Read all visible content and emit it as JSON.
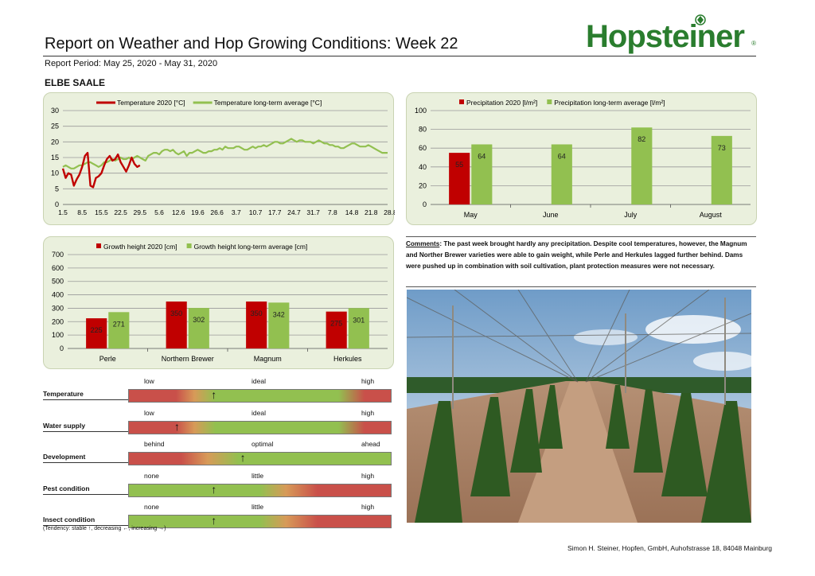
{
  "header": {
    "title": "Report on Weather and Hop Growing Conditions: Week 22",
    "period": "Report Period: May 25, 2020  - May 31, 2020",
    "region": "ELBE SAALE",
    "logo": "Hopsteiner",
    "logo_mark": "®"
  },
  "colors": {
    "red": "#c00000",
    "green": "#92c050",
    "panel_bg": "#eaf0dd"
  },
  "chart_data": [
    {
      "type": "line",
      "legend_placement": "top",
      "grid": true,
      "ylim": [
        0,
        30
      ],
      "yticks": [
        "0",
        "5",
        "10",
        "15",
        "20",
        "25",
        "30"
      ],
      "xticks": [
        "1.5",
        "8.5",
        "15.5",
        "22.5",
        "29.5",
        "5.6",
        "12.6",
        "19.6",
        "26.6",
        "3.7",
        "10.7",
        "17.7",
        "24.7",
        "31.7",
        "7.8",
        "14.8",
        "21.8",
        "28.8"
      ],
      "series": [
        {
          "name": "Temperature 2020 [°C]",
          "color": "#c00000",
          "values": [
            11.5,
            8.5,
            10.0,
            9.5,
            6.0,
            8.0,
            9.5,
            12.0,
            15.5,
            16.5,
            6.0,
            5.5,
            8.5,
            9.0,
            10.0,
            12.5,
            14.5,
            15.5,
            14.0,
            14.5,
            16.0,
            13.5,
            12.0,
            10.5,
            12.5,
            15.0,
            13.0,
            12.0,
            12.5
          ]
        },
        {
          "name": "Temperature long-term average [°C]",
          "color": "#92c050",
          "values": [
            12.0,
            12.5,
            12.0,
            11.5,
            11.5,
            12.0,
            12.5,
            12.5,
            13.0,
            13.5,
            13.5,
            13.0,
            12.5,
            12.0,
            12.5,
            13.5,
            13.5,
            14.0,
            14.5,
            14.0,
            14.5,
            15.0,
            14.5,
            14.5,
            15.0,
            14.5,
            15.0,
            15.5,
            15.0,
            14.5,
            14.0,
            15.5,
            16.0,
            16.5,
            16.5,
            16.0,
            17.0,
            17.5,
            17.5,
            17.0,
            17.5,
            16.5,
            16.0,
            16.5,
            17.0,
            15.5,
            16.5,
            16.5,
            17.0,
            17.5,
            17.0,
            16.5,
            16.5,
            17.0,
            17.0,
            17.5,
            17.5,
            18.0,
            17.5,
            18.5,
            18.0,
            18.0,
            18.0,
            18.5,
            18.5,
            18.0,
            17.5,
            17.5,
            18.0,
            18.5,
            18.0,
            18.5,
            18.5,
            19.0,
            18.5,
            19.0,
            19.5,
            20.0,
            20.0,
            19.5,
            19.5,
            20.0,
            20.5,
            21.0,
            20.5,
            20.0,
            20.5,
            20.5,
            20.0,
            20.0,
            20.0,
            19.5,
            20.0,
            20.5,
            20.0,
            19.5,
            19.5,
            19.0,
            19.0,
            18.5,
            18.5,
            18.0,
            18.0,
            18.5,
            19.0,
            19.5,
            19.5,
            19.0,
            18.5,
            18.5,
            18.5,
            19.0,
            18.5,
            18.0,
            17.5,
            17.0,
            16.5,
            16.5,
            16.5
          ]
        }
      ]
    },
    {
      "type": "bar",
      "legend_placement": "top",
      "grid": true,
      "ylim": [
        0,
        100
      ],
      "yticks": [
        "0",
        "20",
        "40",
        "60",
        "80",
        "100"
      ],
      "categories": [
        "May",
        "June",
        "July",
        "August"
      ],
      "series": [
        {
          "name": "Precipitation 2020 [l/m²]",
          "color": "#c00000",
          "values": [
            55,
            null,
            null,
            null
          ],
          "labels": [
            "55",
            "",
            "",
            ""
          ]
        },
        {
          "name": "Precipitation long-term average [l/m²]",
          "color": "#92c050",
          "values": [
            64,
            64,
            82,
            73
          ],
          "labels": [
            "64",
            "64",
            "82",
            "73"
          ]
        }
      ]
    },
    {
      "type": "bar",
      "legend_placement": "top",
      "grid": true,
      "ylim": [
        0,
        700
      ],
      "yticks": [
        "0",
        "100",
        "200",
        "300",
        "400",
        "500",
        "600",
        "700"
      ],
      "categories": [
        "Perle",
        "Northern Brewer",
        "Magnum",
        "Herkules"
      ],
      "series": [
        {
          "name": "Growth height 2020 [cm]",
          "color": "#c00000",
          "values": [
            225,
            350,
            350,
            275
          ],
          "labels": [
            "225",
            "350",
            "350",
            "275"
          ]
        },
        {
          "name": "Growth height long-term average [cm]",
          "color": "#92c050",
          "values": [
            271,
            302,
            342,
            301
          ],
          "labels": [
            "271",
            "302",
            "342",
            "301"
          ]
        }
      ]
    }
  ],
  "comments": {
    "label": "Comments",
    "text": ": The past week brought hardly any precipitation. Despite cool temperatures, however, the Magnum and Norther Brewer varieties were able to gain weight, while Perle and Herkules lagged further behind. Dams were pushed up in combination with soil cultivation, plant protection measures were not necessary."
  },
  "indicators": [
    {
      "name": "Temperature",
      "left": "low",
      "mid": "ideal",
      "right": "high",
      "scheme": "red-green-red",
      "level": 0.33,
      "tendency": "↑"
    },
    {
      "name": "Water supply",
      "left": "low",
      "mid": "ideal",
      "right": "high",
      "scheme": "red-green-red",
      "level": 0.19,
      "tendency": "↑"
    },
    {
      "name": "Development",
      "left": "behind",
      "mid": "optimal",
      "right": "ahead",
      "scheme": "red-green",
      "level": 0.44,
      "tendency": "↑"
    },
    {
      "name": "Pest condition",
      "left": "none",
      "mid": "little",
      "right": "high",
      "scheme": "green-red",
      "level": 0.33,
      "tendency": "↑"
    },
    {
      "name": "Insect condition",
      "left": "none",
      "mid": "little",
      "right": "high",
      "scheme": "green-red",
      "level": 0.33,
      "tendency": "↑"
    }
  ],
  "tendency_note": "(Tendency: stable ↑, decreasing ←, increasing →)",
  "footer": "Simon H. Steiner, Hopfen, GmbH, Auhofstrasse 18, 84048 Mainburg"
}
